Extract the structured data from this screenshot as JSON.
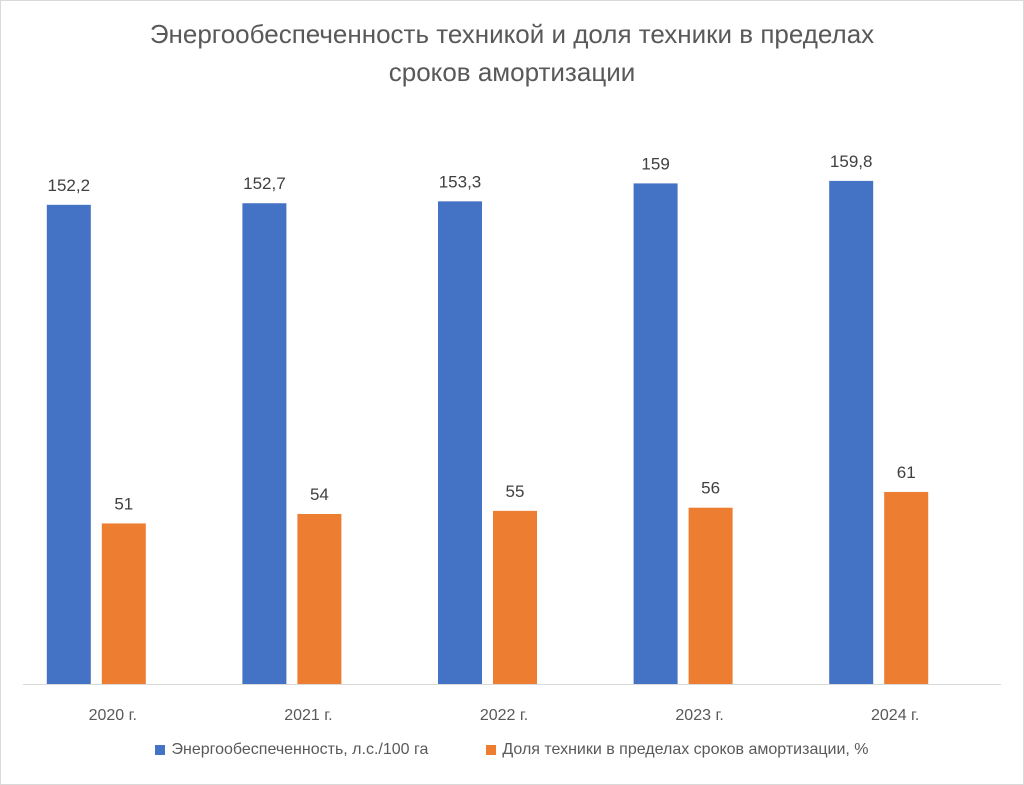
{
  "chart_data": {
    "type": "bar",
    "title_line1": "Энергообеспеченность техникой и доля техники в пределах",
    "title_line2": "сроков амортизации",
    "categories": [
      "2020 г.",
      "2021 г.",
      "2022 г.",
      "2023 г.",
      "2024 г."
    ],
    "series": [
      {
        "name": "Энергообеспеченность, л.с./100 га",
        "color": "#4472C4",
        "values": [
          152.2,
          152.7,
          153.3,
          159,
          159.8
        ],
        "labels": [
          "152,2",
          "152,7",
          "153,3",
          "159",
          "159,8"
        ]
      },
      {
        "name": "Доля техники в пределах сроков амортизации, %",
        "color": "#ED7D31",
        "values": [
          51,
          54,
          55,
          56,
          61
        ],
        "labels": [
          "51",
          "54",
          "55",
          "56",
          "61"
        ]
      }
    ],
    "ylim": [
      0,
      160
    ],
    "xlabel": "",
    "ylabel": "",
    "grid": false,
    "legend_position": "bottom"
  }
}
